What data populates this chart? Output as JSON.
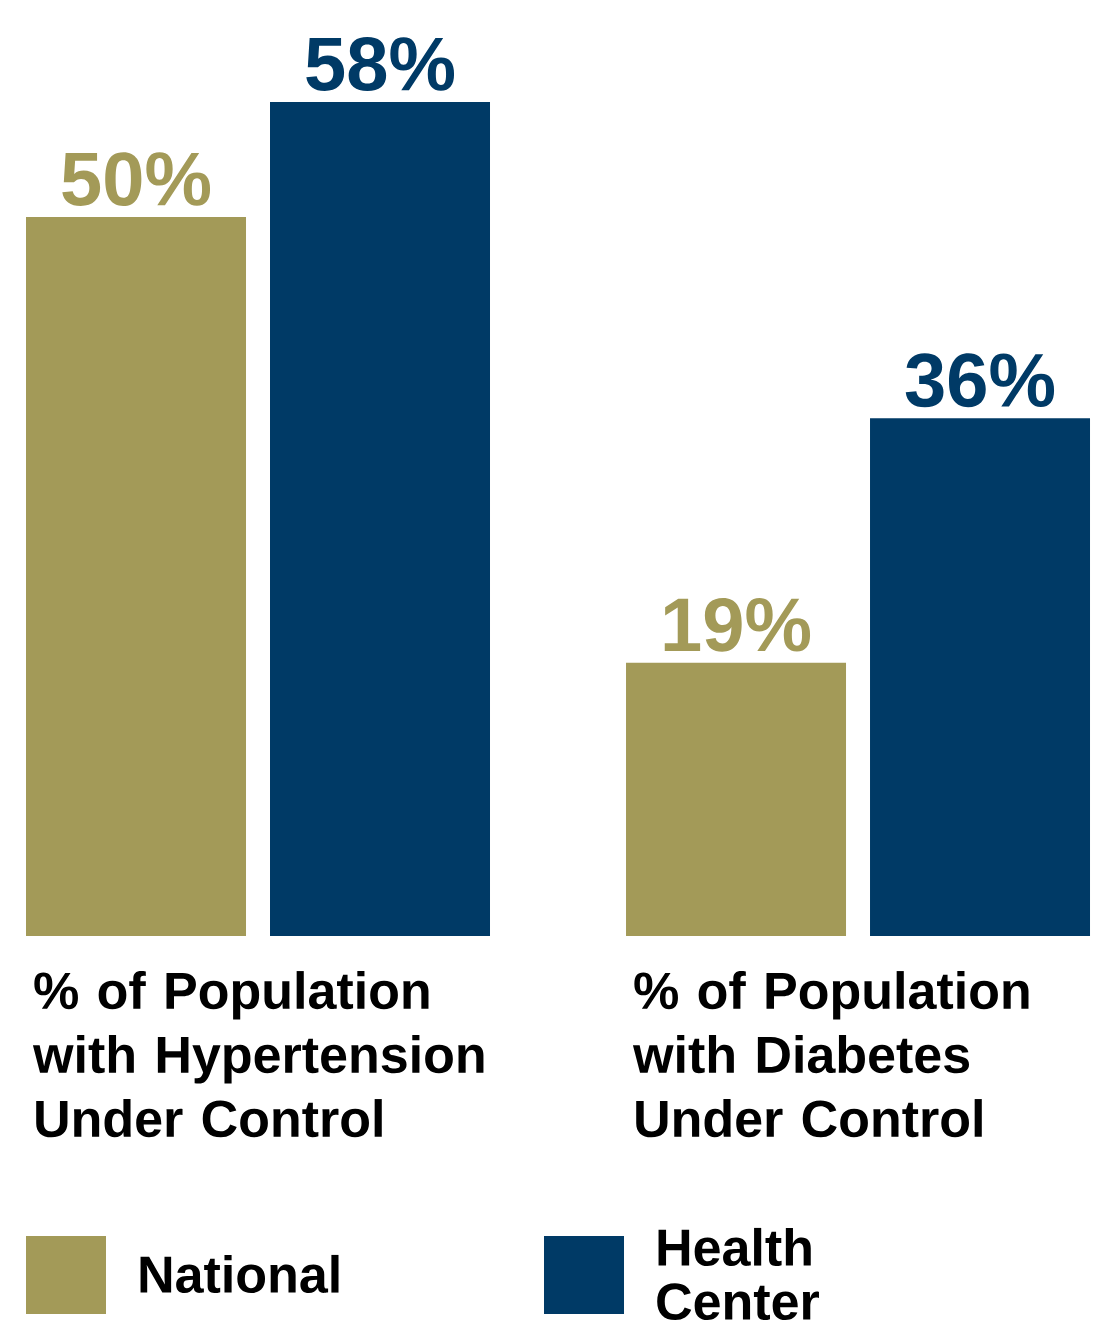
{
  "chart_data": {
    "type": "bar",
    "categories": [
      "% of Population with Hypertension Under Control",
      "% of Population with Diabetes Under Control"
    ],
    "series": [
      {
        "name": "National",
        "color": "#a39a58",
        "values": [
          50,
          19
        ],
        "value_labels": [
          "50%",
          "19%"
        ]
      },
      {
        "name": "Health Center",
        "color": "#003a66",
        "values": [
          58,
          36
        ],
        "value_labels": [
          "58%",
          "36%"
        ]
      }
    ],
    "legend": "bottom"
  }
}
